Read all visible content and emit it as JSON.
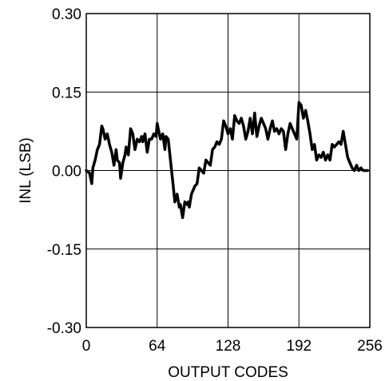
{
  "chart_data": {
    "type": "line",
    "title": "",
    "xlabel": "OUTPUT CODES",
    "ylabel": "INL (LSB)",
    "xlim": [
      0,
      256
    ],
    "ylim": [
      -0.3,
      0.3
    ],
    "xticks": [
      0,
      64,
      128,
      192,
      256
    ],
    "xtick_labels": [
      "0",
      "64",
      "128",
      "192",
      "256"
    ],
    "yticks": [
      0.3,
      0.15,
      0.0,
      -0.15,
      -0.3
    ],
    "ytick_labels": [
      "0.30",
      "0.15",
      "0.00",
      "-0.15",
      "-0.30"
    ],
    "grid": true,
    "legend": false,
    "line_color": "#000000",
    "series": [
      {
        "x": [
          0,
          3,
          5,
          6,
          8,
          10,
          12,
          14,
          15,
          17,
          19,
          21,
          23,
          25,
          27,
          28,
          30,
          31,
          33,
          35,
          36,
          38,
          40,
          42,
          44,
          46,
          48,
          50,
          51,
          53,
          55,
          57,
          59,
          61,
          63,
          64,
          65,
          67,
          69,
          71,
          72,
          74,
          76,
          78,
          80,
          82,
          84,
          85,
          87,
          89,
          91,
          92,
          93,
          95,
          96,
          98,
          100,
          102,
          104,
          106,
          108,
          110,
          112,
          114,
          116,
          118,
          120,
          122,
          124,
          126,
          128,
          130,
          132,
          134,
          136,
          138,
          140,
          142,
          144,
          146,
          148,
          150,
          152,
          154,
          156,
          158,
          160,
          162,
          164,
          166,
          168,
          170,
          172,
          174,
          176,
          178,
          180,
          182,
          184,
          186,
          188,
          190,
          192,
          194,
          196,
          198,
          200,
          202,
          204,
          206,
          208,
          210,
          212,
          214,
          216,
          218,
          220,
          222,
          224,
          226,
          228,
          230,
          232,
          234,
          236,
          238,
          240,
          242,
          244,
          246,
          248,
          250,
          252,
          254
        ],
        "y": [
          0.0,
          -0.005,
          -0.025,
          0.005,
          0.02,
          0.04,
          0.05,
          0.085,
          0.08,
          0.06,
          0.07,
          0.05,
          0.035,
          0.01,
          0.04,
          0.02,
          0.015,
          -0.015,
          0.015,
          0.03,
          0.045,
          0.03,
          0.08,
          0.07,
          0.04,
          0.06,
          0.055,
          0.065,
          0.055,
          0.07,
          0.035,
          0.06,
          0.06,
          0.07,
          0.065,
          0.09,
          0.08,
          0.06,
          0.07,
          0.04,
          0.065,
          0.06,
          0.02,
          -0.02,
          -0.06,
          -0.045,
          -0.07,
          -0.065,
          -0.09,
          -0.06,
          -0.065,
          -0.06,
          -0.07,
          -0.045,
          -0.04,
          -0.03,
          -0.025,
          0.005,
          0.0,
          -0.005,
          0.02,
          0.015,
          0.01,
          0.04,
          0.045,
          0.055,
          0.05,
          0.06,
          0.095,
          0.085,
          0.07,
          0.08,
          0.06,
          0.105,
          0.095,
          0.09,
          0.1,
          0.085,
          0.06,
          0.075,
          0.1,
          0.07,
          0.11,
          0.065,
          0.085,
          0.1,
          0.09,
          0.08,
          0.06,
          0.08,
          0.095,
          0.075,
          0.08,
          0.07,
          0.08,
          0.075,
          0.04,
          0.07,
          0.09,
          0.08,
          0.07,
          0.06,
          0.13,
          0.125,
          0.1,
          0.115,
          0.095,
          0.07,
          0.04,
          0.05,
          0.02,
          0.03,
          0.025,
          0.035,
          0.02,
          0.03,
          0.02,
          0.05,
          0.045,
          0.05,
          0.055,
          0.05,
          0.075,
          0.05,
          0.025,
          0.015,
          0.005,
          0.0,
          0.01,
          0.0,
          0.005,
          0.0,
          0.0,
          0.0
        ]
      }
    ]
  }
}
